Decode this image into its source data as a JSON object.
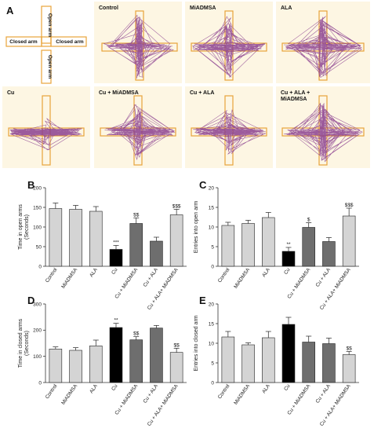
{
  "panel_a": {
    "letter": "A",
    "schematic": {
      "open_arm_top": "Open arm",
      "open_arm_bottom": "Open arm",
      "closed_arm_left": "Closed arm",
      "closed_arm_right": "Closed arm"
    },
    "tiles": [
      "Control",
      "MiADMSA",
      "ALA",
      "Cu",
      "Cu + MiADMSA",
      "Cu + ALA",
      "Cu + ALA +\nMiADMSA"
    ],
    "colors": {
      "tile_bg": "#fdf6e3",
      "arm_outline": "#e8a33a",
      "track": "#8b3f8f"
    }
  },
  "colors": {
    "control_group": "#d4d4d4",
    "cu_group": "#000000",
    "treatment_group": "#6e6e6e",
    "axis": "#333333"
  },
  "chart_data": [
    {
      "letter": "B",
      "type": "bar",
      "ylabel": "Time in open arms\n(Seconds)",
      "ylim": [
        0,
        200
      ],
      "yticks": [
        0,
        50,
        100,
        150,
        200
      ],
      "categories": [
        "Control",
        "MiADMSA",
        "ALA",
        "Cu",
        "Cu + MiADMSA",
        "Cu + ALA",
        "Cu + ALA+ MiADMSA"
      ],
      "values": [
        147,
        145,
        140,
        43,
        109,
        64,
        131
      ],
      "errors": [
        14,
        10,
        12,
        10,
        14,
        10,
        14
      ],
      "fills": [
        "light",
        "light",
        "light",
        "black",
        "dark",
        "dark",
        "light"
      ],
      "annotations": [
        "",
        "",
        "",
        "***",
        "$$",
        "",
        "$$$"
      ]
    },
    {
      "letter": "C",
      "type": "bar",
      "ylabel": "Entries into open arm",
      "ylim": [
        0,
        20
      ],
      "yticks": [
        0,
        5,
        10,
        15,
        20
      ],
      "categories": [
        "Control",
        "MiADMSA",
        "ALA",
        "Cu",
        "Cu + MiADMSA",
        "Cu + ALA",
        "Cu + ALA+ MiADMSA"
      ],
      "values": [
        10.4,
        10.9,
        12.4,
        3.8,
        9.9,
        6.3,
        12.8
      ],
      "errors": [
        0.8,
        0.8,
        1.3,
        1.0,
        1.2,
        1.0,
        2.0
      ],
      "fills": [
        "light",
        "light",
        "light",
        "black",
        "dark",
        "dark",
        "light"
      ],
      "annotations": [
        "",
        "",
        "",
        "**",
        "$",
        "",
        "$$$"
      ]
    },
    {
      "letter": "D",
      "type": "bar",
      "ylabel": "Time in closed arms\n(Seconds)",
      "ylim": [
        0,
        300
      ],
      "yticks": [
        0,
        100,
        200,
        300
      ],
      "categories": [
        "Control",
        "MiADMSA",
        "ALA",
        "Cu",
        "Cu + MiADMSA",
        "Cu + ALA",
        "Cu + ALA+ MiADMSA"
      ],
      "values": [
        128,
        123,
        140,
        210,
        163,
        208,
        115
      ],
      "errors": [
        8,
        10,
        22,
        16,
        12,
        10,
        16
      ],
      "fills": [
        "light",
        "light",
        "light",
        "black",
        "dark",
        "dark",
        "light"
      ],
      "annotations": [
        "",
        "",
        "",
        "**",
        "$$",
        "",
        "$$"
      ]
    },
    {
      "letter": "E",
      "type": "bar",
      "ylabel": "Entries into closed arm",
      "ylim": [
        0,
        20
      ],
      "yticks": [
        0,
        5,
        10,
        15,
        20
      ],
      "categories": [
        "Control",
        "MiADMSA",
        "ALA",
        "Cu",
        "Cu + MiADMSA",
        "Cu + ALA",
        "Cu + ALA+ MiADMSA"
      ],
      "values": [
        11.6,
        9.6,
        11.4,
        14.8,
        10.3,
        9.9,
        7.1
      ],
      "errors": [
        1.4,
        0.5,
        1.6,
        1.8,
        1.5,
        1.4,
        0.8
      ],
      "fills": [
        "light",
        "light",
        "light",
        "black",
        "dark",
        "dark",
        "light"
      ],
      "annotations": [
        "",
        "",
        "",
        "",
        "",
        "",
        "$$"
      ]
    }
  ]
}
